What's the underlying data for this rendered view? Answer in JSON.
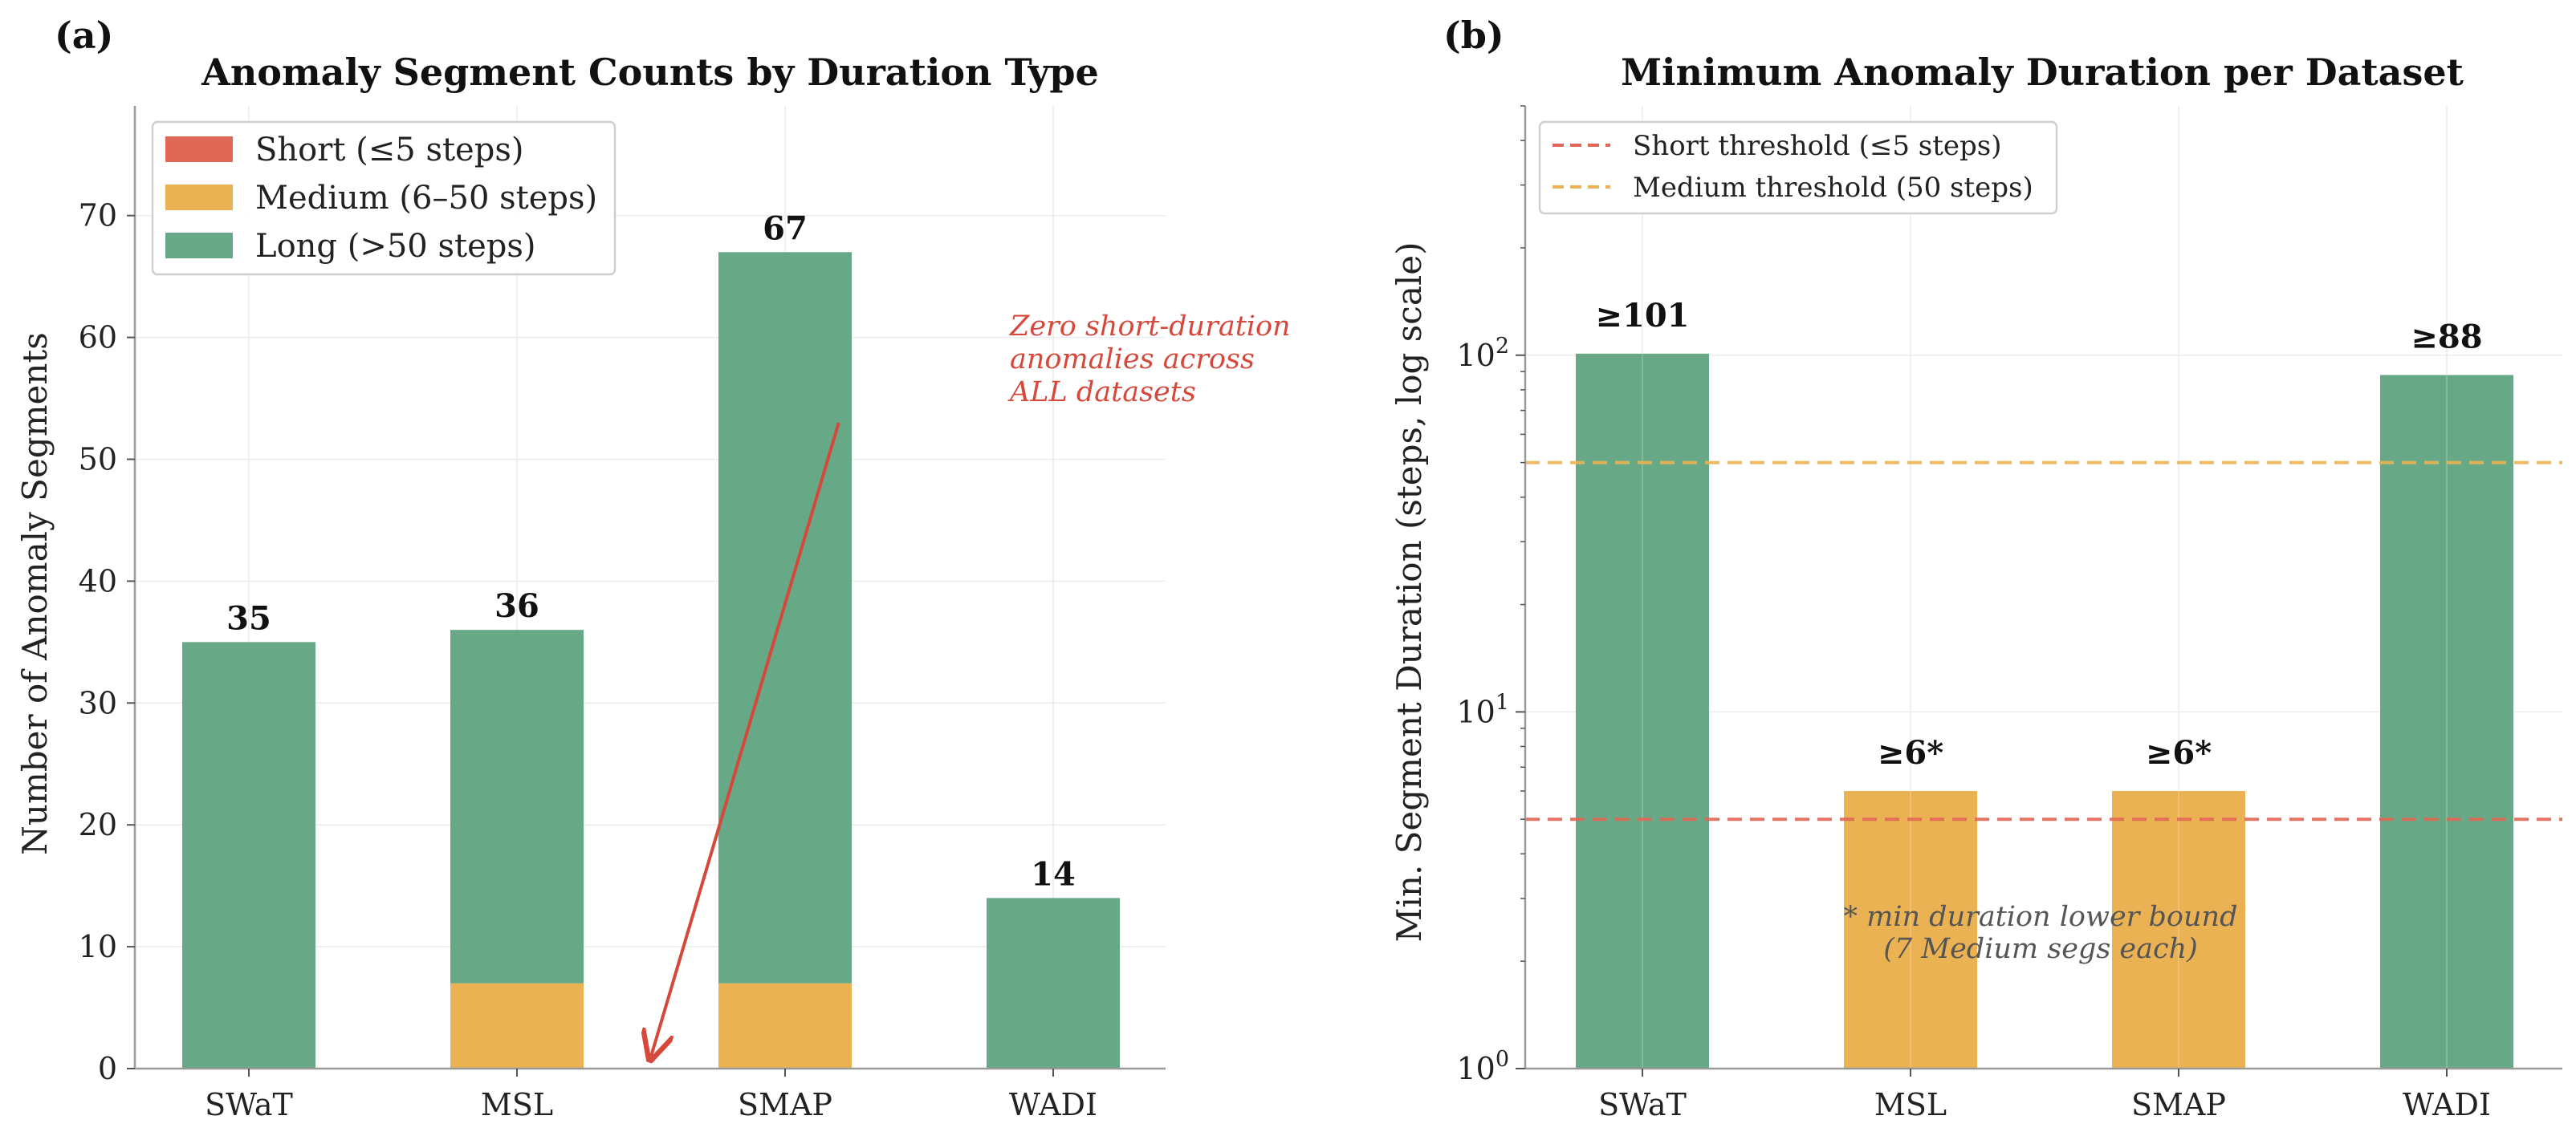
{
  "chart_data": [
    {
      "panel": "(a)",
      "type": "bar",
      "stacked": true,
      "title": "Anomaly Segment Counts by Duration Type",
      "xlabel": "",
      "ylabel": "Number of Anomaly Segments",
      "ylim": [
        0,
        79
      ],
      "yticks": [
        0,
        10,
        20,
        30,
        40,
        50,
        60,
        70
      ],
      "grid": true,
      "legend_position": "top-left",
      "categories": [
        "SWaT",
        "MSL",
        "SMAP",
        "WADI"
      ],
      "series": [
        {
          "name": "Short  (≤5 steps)",
          "color": "#e06655",
          "values": [
            0,
            0,
            0,
            0
          ]
        },
        {
          "name": "Medium (6–50 steps)",
          "color": "#ebb253",
          "values": [
            0,
            7,
            7,
            0
          ]
        },
        {
          "name": "Long   (>50 steps)",
          "color": "#67a887",
          "values": [
            35,
            29,
            60,
            14
          ]
        }
      ],
      "totals": [
        35,
        36,
        67,
        14
      ],
      "total_labels": [
        "35",
        "36",
        "67",
        "14"
      ],
      "annotation": {
        "lines": [
          "Zero short-duration",
          "anomalies across",
          "ALL datasets"
        ],
        "color": "#d6483a",
        "arrow_from": {
          "x": 2.2,
          "y": 53
        },
        "arrow_to": {
          "x": 1.5,
          "y": 1
        }
      }
    },
    {
      "panel": "(b)",
      "type": "bar",
      "title": "Minimum Anomaly Duration per Dataset",
      "xlabel": "",
      "ylabel": "Min. Segment Duration (steps, log scale)",
      "yscale": "log",
      "ylim": [
        1,
        500
      ],
      "ytick_labels": [
        {
          "value": 1,
          "base": "10",
          "exp": "0"
        },
        {
          "value": 10,
          "base": "10",
          "exp": "1"
        },
        {
          "value": 100,
          "base": "10",
          "exp": "2"
        }
      ],
      "grid": true,
      "legend_position": "top-left",
      "categories": [
        "SWaT",
        "MSL",
        "SMAP",
        "WADI"
      ],
      "values": [
        101,
        6,
        6,
        88
      ],
      "bar_colors": [
        "#67a887",
        "#ebb253",
        "#ebb253",
        "#67a887"
      ],
      "value_labels": [
        "≥101",
        "≥6*",
        "≥6*",
        "≥88"
      ],
      "thresholds": [
        {
          "name": "Short threshold (≤5 steps)",
          "value": 5,
          "color": "#e06655"
        },
        {
          "name": "Medium threshold (50 steps)",
          "value": 50,
          "color": "#ebb253"
        }
      ],
      "note": [
        "* min duration lower bound",
        "(7 Medium segs each)"
      ]
    }
  ]
}
